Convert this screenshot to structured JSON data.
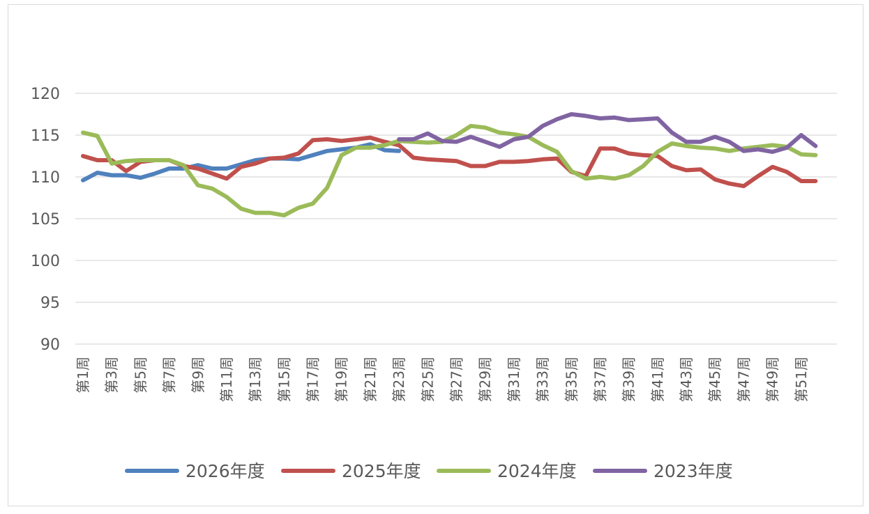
{
  "chart_data": {
    "type": "line",
    "title": "",
    "xlabel": "",
    "ylabel": "",
    "ylim": [
      90,
      120
    ],
    "yticks": [
      90,
      95,
      100,
      105,
      110,
      115,
      120
    ],
    "grid": true,
    "legend_position": "bottom",
    "x_tick_labels": [
      "第1周",
      "第3周",
      "第5周",
      "第7周",
      "第9周",
      "第11周",
      "第13周",
      "第15周",
      "第17周",
      "第19周",
      "第21周",
      "第23周",
      "第25周",
      "第27周",
      "第29周",
      "第31周",
      "第33周",
      "第35周",
      "第37周",
      "第39周",
      "第41周",
      "第43周",
      "第45周",
      "第47周",
      "第49周",
      "第51周"
    ],
    "x_tick_weeks": [
      1,
      3,
      5,
      7,
      9,
      11,
      13,
      15,
      17,
      19,
      21,
      23,
      25,
      27,
      29,
      31,
      33,
      35,
      37,
      39,
      41,
      43,
      45,
      47,
      49,
      51
    ],
    "x_range": [
      1,
      53
    ],
    "series": [
      {
        "name": "2026年度",
        "color": "#4f81bd",
        "start_week": 1,
        "values": [
          109.6,
          110.5,
          110.2,
          110.2,
          109.9,
          110.4,
          111.0,
          111.0,
          111.4,
          111.0,
          111.0,
          111.5,
          112.0,
          112.2,
          112.2,
          112.1,
          112.6,
          113.1,
          113.3,
          113.5,
          113.9,
          113.2,
          113.1
        ]
      },
      {
        "name": "2025年度",
        "color": "#c0504d",
        "start_week": 1,
        "values": [
          112.5,
          112.0,
          112.0,
          110.7,
          111.8,
          112.0,
          112.0,
          111.3,
          111.0,
          110.4,
          109.8,
          111.2,
          111.6,
          112.2,
          112.3,
          112.8,
          114.4,
          114.5,
          114.3,
          114.5,
          114.7,
          114.2,
          113.8,
          112.3,
          112.1,
          112.0,
          111.9,
          111.3,
          111.3,
          111.8,
          111.8,
          111.9,
          112.1,
          112.2,
          110.6,
          110.1,
          113.4,
          113.4,
          112.8,
          112.6,
          112.5,
          111.3,
          110.8,
          110.9,
          109.7,
          109.2,
          108.9,
          110.1,
          111.2,
          110.6,
          109.5,
          109.5
        ]
      },
      {
        "name": "2024年度",
        "color": "#9bbb59",
        "start_week": 1,
        "values": [
          115.3,
          114.9,
          111.6,
          111.9,
          112.0,
          112.0,
          112.0,
          111.4,
          109.0,
          108.6,
          107.6,
          106.2,
          105.7,
          105.7,
          105.4,
          106.3,
          106.8,
          108.7,
          112.6,
          113.5,
          113.5,
          113.8,
          114.3,
          114.2,
          114.1,
          114.2,
          115.0,
          116.1,
          115.9,
          115.3,
          115.1,
          114.8,
          113.8,
          113.0,
          110.7,
          109.8,
          110.0,
          109.8,
          110.2,
          111.3,
          113.0,
          114.0,
          113.7,
          113.5,
          113.4,
          113.1,
          113.4,
          113.6,
          113.8,
          113.6,
          112.7,
          112.6
        ]
      },
      {
        "name": "2023年度",
        "color": "#8064a2",
        "start_week": 23,
        "values": [
          114.5,
          114.5,
          115.2,
          114.3,
          114.2,
          114.8,
          114.2,
          113.6,
          114.5,
          114.8,
          116.1,
          116.9,
          117.5,
          117.3,
          117.0,
          117.1,
          116.8,
          116.9,
          117.0,
          115.3,
          114.2,
          114.2,
          114.8,
          114.2,
          113.1,
          113.3,
          113.0,
          113.5,
          115.0,
          113.7
        ]
      }
    ]
  }
}
